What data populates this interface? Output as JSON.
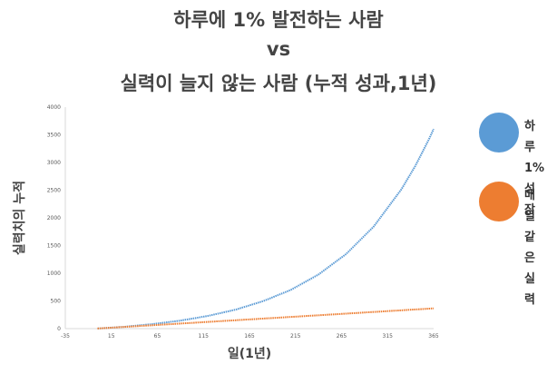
{
  "chart_data": {
    "type": "scatter",
    "title": [
      "하루에 1% 발전하는 사람",
      "vs",
      "실력이 늘지 않는 사람 (누적 성과,1년)"
    ],
    "xlabel": "일(1년)",
    "ylabel": "실력치의 누적",
    "xlim": [
      -35,
      365
    ],
    "ylim": [
      0,
      4000
    ],
    "xticks": [
      -35,
      15,
      65,
      115,
      165,
      215,
      265,
      315,
      365
    ],
    "yticks": [
      0,
      500,
      1000,
      1500,
      2000,
      2500,
      3000,
      3500,
      4000
    ],
    "grid": false,
    "legend_position": "right",
    "series": [
      {
        "name": "하루 1% 성장",
        "color": "#5B9BD5",
        "x": [
          0,
          30,
          60,
          90,
          120,
          150,
          180,
          210,
          240,
          270,
          300,
          330,
          345,
          360,
          365
        ],
        "y": [
          1,
          35,
          82,
          145,
          230,
          343,
          496,
          700,
          977,
          1347,
          1845,
          2517,
          2935,
          3421,
          3603
        ]
      },
      {
        "name": "매일 같은 실력",
        "color": "#ED7D31",
        "x": [
          0,
          365
        ],
        "y": [
          1,
          365
        ]
      }
    ]
  }
}
